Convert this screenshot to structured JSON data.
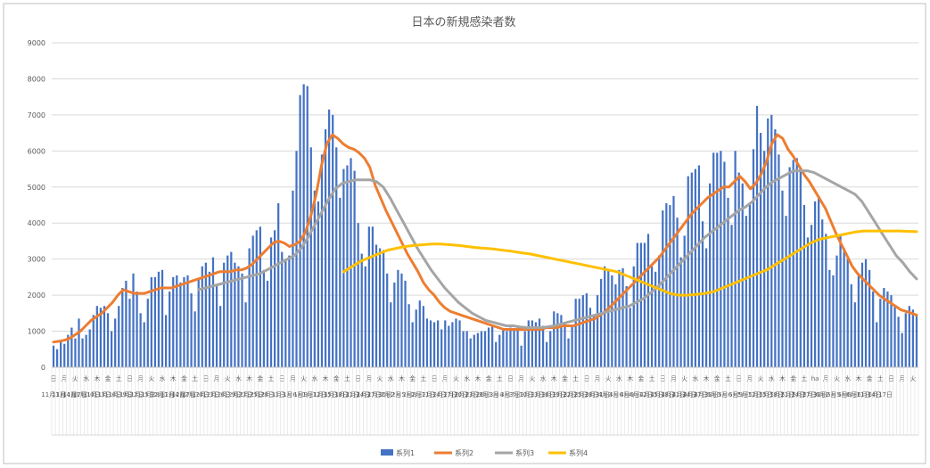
{
  "chart_data": {
    "type": "bar",
    "title": "日本の新規感染者数",
    "ylim": [
      0,
      9000
    ],
    "ytick_step": 1000,
    "yticks": [
      "0",
      "1000",
      "2000",
      "3000",
      "4000",
      "5000",
      "6000",
      "7000",
      "8000",
      "9000"
    ],
    "grid": true,
    "legend_position": "bottom",
    "x_tick_labels": [
      "日",
      "月",
      "火",
      "水",
      "木",
      "金",
      "土",
      "日",
      "月",
      "火",
      "水",
      "木",
      "金",
      "土",
      "日",
      "月",
      "火",
      "水",
      "木",
      "金",
      "土",
      "日",
      "月",
      "火",
      "水",
      "木",
      "金",
      "土",
      "日",
      "月",
      "火",
      "水",
      "木",
      "金",
      "土",
      "日",
      "月",
      "火",
      "水",
      "木",
      "金",
      "土",
      "日",
      "月",
      "火",
      "水",
      "木",
      "金",
      "土",
      "日",
      "月",
      "火",
      "水",
      "木",
      "金",
      "土",
      "日",
      "月",
      "火",
      "水",
      "木",
      "金",
      "土",
      "日",
      "月",
      "火",
      "水",
      "木",
      "金",
      "土",
      "ha",
      "月",
      "火",
      "水",
      "木",
      "金",
      "土",
      "日",
      "月",
      "火",
      "水",
      "木",
      "金",
      "土",
      "日",
      "月",
      "火",
      "水",
      "木",
      "金",
      "土",
      "日",
      "月",
      "火",
      "水",
      "木",
      "金",
      "土",
      "日",
      "月",
      "火",
      "水",
      "木",
      "金",
      "土",
      "日",
      "月",
      "火",
      "水",
      "木",
      "金",
      "土",
      "日",
      "月",
      "火",
      "水",
      "木",
      "金",
      "土",
      "日",
      "月",
      "火",
      "水",
      "木",
      "金",
      "土",
      "日",
      "月",
      "火",
      "水",
      "木",
      "金",
      "土",
      "日",
      "月",
      "火",
      "水",
      "木",
      "金",
      "土",
      "日",
      "月",
      "火",
      "水",
      "木",
      "金",
      "土",
      "日",
      "月",
      "火",
      "水",
      "木"
    ],
    "x_date_labels": [
      "11月1日",
      "11月4日",
      "11月7日",
      "11月10日",
      "11月13日",
      "11月16日",
      "11月19日",
      "11月22日",
      "11月25日",
      "11月28日",
      "12月1日",
      "12月4日",
      "12月7日",
      "12月10日",
      "12月13日",
      "12月16日",
      "12月19日",
      "12月22日",
      "12月25日",
      "12月28日",
      "12月31日",
      "1月3日",
      "1月6日",
      "1月9日",
      "1月12日",
      "1月15日",
      "1月18日",
      "1月21日",
      "1月24日",
      "1月27日",
      "1月30日",
      "2月2日",
      "2月5日",
      "2月8日",
      "2月11日",
      "2月14日",
      "2月17日",
      "2月20日",
      "2月23日",
      "2月26日",
      "3月1日",
      "3月4日",
      "3月7日",
      "3月10日",
      "3月13日",
      "3月16日",
      "3月19日",
      "3月22日",
      "3月25日",
      "3月28日",
      "3月31日",
      "4月3日",
      "4月6日",
      "4月9日",
      "4月12日",
      "4月15日",
      "4月18日",
      "4月21日",
      "4月24日",
      "4月27日",
      "4月30日",
      "5月3日",
      "5月6日",
      "5月9日",
      "5月12日",
      "5月15日",
      "5月18日",
      "5月21日",
      "5月24日",
      "5月27日",
      "5月30日",
      "6月2日",
      "6月5日",
      "6月8日",
      "6月11日",
      "6月14日",
      "6月17日"
    ],
    "series": [
      {
        "name": "系列1",
        "type": "bar",
        "color": "#4472C4",
        "values": [
          600,
          500,
          750,
          650,
          900,
          1100,
          800,
          1350,
          800,
          900,
          1050,
          1450,
          1700,
          1650,
          1700,
          1500,
          1000,
          1350,
          1700,
          2200,
          2400,
          1900,
          2600,
          2100,
          1500,
          1250,
          1900,
          2500,
          2500,
          2650,
          2700,
          1450,
          2100,
          2500,
          2550,
          2350,
          2500,
          2550,
          2050,
          1550,
          2450,
          2800,
          2900,
          2650,
          3050,
          2300,
          1700,
          2900,
          3100,
          3200,
          2900,
          2800,
          2600,
          1800,
          3300,
          3650,
          3800,
          3900,
          2700,
          2400,
          3600,
          3800,
          4550,
          3200,
          2950,
          3100,
          4900,
          6000,
          7550,
          7850,
          7800,
          6100,
          4900,
          4600,
          5900,
          6600,
          7150,
          7000,
          6100,
          4700,
          5500,
          5600,
          5800,
          5450,
          4000,
          3150,
          2800,
          3900,
          3900,
          3400,
          3300,
          3250,
          2600,
          1800,
          2350,
          2700,
          2600,
          2400,
          1750,
          1250,
          1600,
          1850,
          1700,
          1350,
          1300,
          1250,
          1300,
          1050,
          1300,
          1150,
          1250,
          1350,
          1300,
          1000,
          1000,
          800,
          900,
          950,
          1000,
          1000,
          1100,
          1150,
          700,
          900,
          1050,
          1000,
          1100,
          1050,
          1100,
          600,
          1000,
          1300,
          1300,
          1250,
          1350,
          1150,
          700,
          1000,
          1550,
          1500,
          1450,
          1250,
          800,
          1150,
          1900,
          1900,
          2000,
          2050,
          1650,
          1450,
          2000,
          2450,
          2800,
          2700,
          2550,
          2300,
          2700,
          2750,
          2250,
          1650,
          2800,
          3450,
          3450,
          3450,
          3700,
          2800,
          2650,
          3100,
          4350,
          4550,
          4500,
          4750,
          4150,
          3050,
          3650,
          5300,
          5400,
          5500,
          5600,
          4050,
          3300,
          5100,
          5950,
          5950,
          6000,
          5700,
          4700,
          3950,
          6000,
          5400,
          5100,
          4200,
          4550,
          6050,
          7250,
          6500,
          6000,
          6900,
          7000,
          6600,
          5900,
          4900,
          4200,
          5550,
          5750,
          5800,
          5500,
          4500,
          3600,
          3950,
          4600,
          4700,
          4100,
          3700,
          2700,
          2550,
          3100,
          3650,
          3300,
          3000,
          2300,
          1800,
          2600,
          2900,
          3000,
          2700,
          2100,
          1250,
          1900,
          2200,
          2100,
          2000,
          1700,
          1400,
          950,
          1500,
          1700,
          1600,
          1450
        ]
      },
      {
        "name": "系列2",
        "type": "line",
        "color": "#ED7D31",
        "values": [
          700,
          720,
          750,
          800,
          900,
          1000,
          1150,
          1300,
          1400,
          1500,
          1650,
          1800,
          2000,
          2150,
          2100,
          2050,
          2050,
          2050,
          2100,
          2150,
          2200,
          2200,
          2200,
          2250,
          2300,
          2350,
          2400,
          2450,
          2500,
          2550,
          2600,
          2650,
          2650,
          2650,
          2700,
          2700,
          2750,
          2850,
          3000,
          3150,
          3300,
          3450,
          3500,
          3450,
          3350,
          3400,
          3500,
          3750,
          4200,
          4800,
          5600,
          6200,
          6450,
          6350,
          6200,
          6100,
          6050,
          5950,
          5800,
          5550,
          5050,
          4700,
          4350,
          4050,
          3750,
          3450,
          3150,
          2900,
          2650,
          2350,
          2150,
          2000,
          1800,
          1650,
          1550,
          1500,
          1450,
          1400,
          1350,
          1300,
          1250,
          1200,
          1150,
          1100,
          1050,
          1050,
          1050,
          1050,
          1050,
          1050,
          1050,
          1050,
          1100,
          1100,
          1100,
          1150,
          1150,
          1150,
          1200,
          1250,
          1300,
          1350,
          1450,
          1550,
          1700,
          1850,
          2000,
          2150,
          2300,
          2450,
          2600,
          2750,
          2900,
          3050,
          3250,
          3450,
          3650,
          3850,
          4050,
          4250,
          4400,
          4550,
          4700,
          4800,
          4900,
          5000,
          5000,
          5150,
          5300,
          5150,
          4950,
          5100,
          5350,
          5700,
          6200,
          6450,
          6350,
          6050,
          5850,
          5600,
          5350,
          5150,
          4900,
          4650,
          4400,
          4050,
          3700,
          3400,
          3100,
          2800,
          2600,
          2450,
          2300,
          2150,
          2000,
          1900,
          1800,
          1700,
          1600,
          1550,
          1500,
          1450
        ]
      },
      {
        "name": "系列3",
        "type": "line",
        "color": "#A5A5A5",
        "start_index": 40,
        "values": [
          2150,
          2200,
          2250,
          2300,
          2350,
          2400,
          2450,
          2500,
          2550,
          2600,
          2700,
          2800,
          2900,
          3000,
          3100,
          3300,
          3600,
          3950,
          4300,
          4650,
          4950,
          5100,
          5150,
          5200,
          5200,
          5200,
          5150,
          5000,
          4700,
          4350,
          4000,
          3650,
          3300,
          3000,
          2700,
          2450,
          2200,
          2000,
          1800,
          1650,
          1500,
          1400,
          1300,
          1250,
          1200,
          1150,
          1150,
          1120,
          1100,
          1100,
          1100,
          1120,
          1150,
          1200,
          1250,
          1300,
          1350,
          1400,
          1450,
          1500,
          1550,
          1600,
          1650,
          1700,
          1800,
          1900,
          2050,
          2200,
          2400,
          2600,
          2800,
          3000,
          3200,
          3400,
          3600,
          3750,
          3900,
          4050,
          4200,
          4350,
          4450,
          4600,
          4800,
          5000,
          5150,
          5250,
          5350,
          5450,
          5450,
          5450,
          5400,
          5300,
          5200,
          5100,
          5000,
          4900,
          4800,
          4600,
          4300,
          4000,
          3700,
          3400,
          3100,
          2900,
          2650,
          2450
        ]
      },
      {
        "name": "系列4",
        "type": "line",
        "color": "#FFC000",
        "start_index": 80,
        "values": [
          2650,
          2800,
          2950,
          3050,
          3150,
          3250,
          3300,
          3350,
          3380,
          3400,
          3420,
          3420,
          3400,
          3380,
          3350,
          3320,
          3300,
          3280,
          3250,
          3220,
          3180,
          3150,
          3100,
          3050,
          3000,
          2950,
          2900,
          2850,
          2800,
          2750,
          2700,
          2650,
          2550,
          2450,
          2350,
          2250,
          2150,
          2050,
          2000,
          2000,
          2020,
          2050,
          2100,
          2200,
          2300,
          2400,
          2500,
          2600,
          2700,
          2850,
          3000,
          3150,
          3300,
          3450,
          3550,
          3600,
          3650,
          3700,
          3750,
          3780,
          3780,
          3780,
          3780,
          3780,
          3770,
          3760
        ]
      }
    ]
  }
}
